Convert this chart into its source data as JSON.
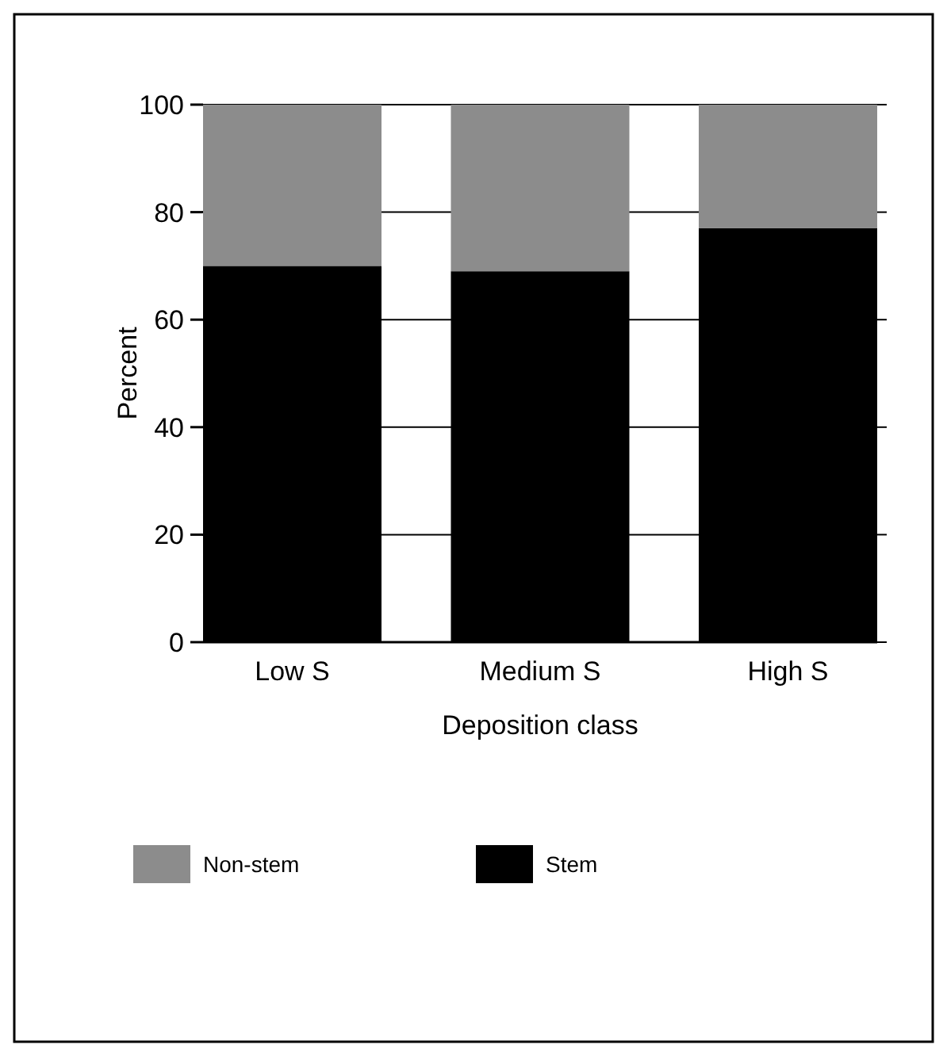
{
  "chart_data": {
    "type": "bar",
    "stacked": true,
    "xlabel": "Deposition class",
    "ylabel": "Percent",
    "categories": [
      "Low S",
      "Medium S",
      "High S"
    ],
    "series": [
      {
        "name": "Stem",
        "color": "#000000",
        "values": [
          70,
          69,
          77
        ]
      },
      {
        "name": "Non-stem",
        "color": "#8c8c8c",
        "values": [
          30,
          31,
          23
        ]
      }
    ],
    "ylim": [
      0,
      100
    ],
    "yticks": [
      0,
      20,
      40,
      60,
      80,
      100
    ],
    "grid": "y",
    "legend": "bottom"
  }
}
